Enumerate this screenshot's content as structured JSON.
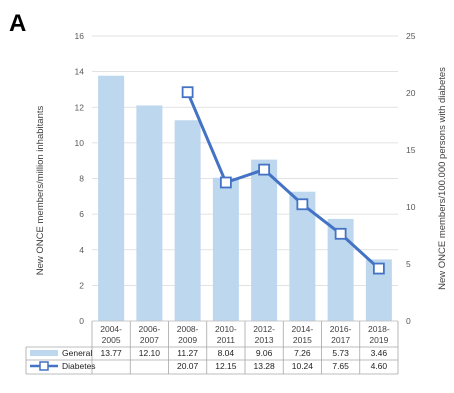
{
  "panel_label": "A",
  "chart_data": {
    "type": "bar",
    "categories": [
      [
        "2004-",
        "2005"
      ],
      [
        "2006-",
        "2007"
      ],
      [
        "2008-",
        "2009"
      ],
      [
        "2010-",
        "2011"
      ],
      [
        "2012-",
        "2013"
      ],
      [
        "2014-",
        "2015"
      ],
      [
        "2016-",
        "2017"
      ],
      [
        "2018-",
        "2019"
      ]
    ],
    "series": [
      {
        "name": "General",
        "type": "bar",
        "axis": "left",
        "values": [
          13.77,
          12.1,
          11.27,
          8.04,
          9.06,
          7.26,
          5.73,
          3.46
        ],
        "labels": [
          "13.77",
          "12.10",
          "11.27",
          "8.04",
          "9.06",
          "7.26",
          "5.73",
          "3.46"
        ],
        "color": "#bdd7ee"
      },
      {
        "name": "Diabetes",
        "type": "line",
        "axis": "right",
        "values": [
          null,
          null,
          20.07,
          12.15,
          13.28,
          10.24,
          7.65,
          4.6
        ],
        "labels": [
          "",
          "",
          "20.07",
          "12.15",
          "13.28",
          "10.24",
          "7.65",
          "4.60"
        ],
        "color": "#4472c4"
      }
    ],
    "ylabel": "New ONCE members/million inhabitants",
    "y2label": "New ONCE members/100.000 persons with diabetes",
    "ylim": [
      0,
      16
    ],
    "yticks": [
      "0",
      "2",
      "4",
      "6",
      "8",
      "10",
      "12",
      "14",
      "16"
    ],
    "y2lim": [
      0,
      25
    ],
    "y2ticks": [
      "0",
      "5",
      "10",
      "15",
      "20",
      "25"
    ],
    "grid": true,
    "data_table": true
  }
}
